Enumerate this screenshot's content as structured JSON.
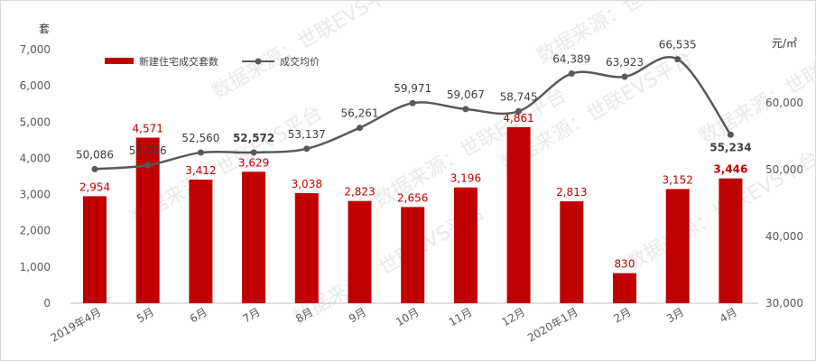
{
  "chart_data": {
    "type": "bar",
    "categories": [
      "2019年4月",
      "5月",
      "6月",
      "7月",
      "8月",
      "9月",
      "10月",
      "11月",
      "12月",
      "2020年1月",
      "2月",
      "3月",
      "4月"
    ],
    "series": [
      {
        "name": "新建住宅成交套数",
        "type": "bar",
        "axis": "left",
        "color": "#c00000",
        "values": [
          2954,
          4571,
          3412,
          3629,
          3038,
          2823,
          2656,
          3196,
          4861,
          2813,
          830,
          3152,
          3446
        ]
      },
      {
        "name": "成交均价",
        "type": "line",
        "axis": "right",
        "color": "#595959",
        "values": [
          50086,
          50656,
          52560,
          52572,
          53137,
          56261,
          59971,
          59067,
          58745,
          64389,
          63923,
          66535,
          55234
        ]
      }
    ],
    "left_axis": {
      "unit": "套",
      "ylim": [
        0,
        7000
      ],
      "ticks": [
        0,
        1000,
        2000,
        3000,
        4000,
        5000,
        6000,
        7000
      ]
    },
    "right_axis": {
      "unit": "元/㎡",
      "ylim": [
        30000,
        70000
      ],
      "ticks": [
        30000,
        40000,
        50000,
        60000
      ]
    },
    "bar_labels": [
      "2,954",
      "4,571",
      "3,412",
      "3,629",
      "3,038",
      "2,823",
      "2,656",
      "3,196",
      "4,861",
      "2,813",
      "830",
      "3,152",
      "3,446"
    ],
    "line_labels": [
      "50,086",
      "50,656",
      "52,560",
      "52,572",
      "53,137",
      "56,261",
      "59,971",
      "59,067",
      "58,745",
      "64,389",
      "63,923",
      "66,535",
      "55,234"
    ],
    "grid": false,
    "legend": "top-left",
    "watermark": "数据来源：世联EVS平台"
  }
}
